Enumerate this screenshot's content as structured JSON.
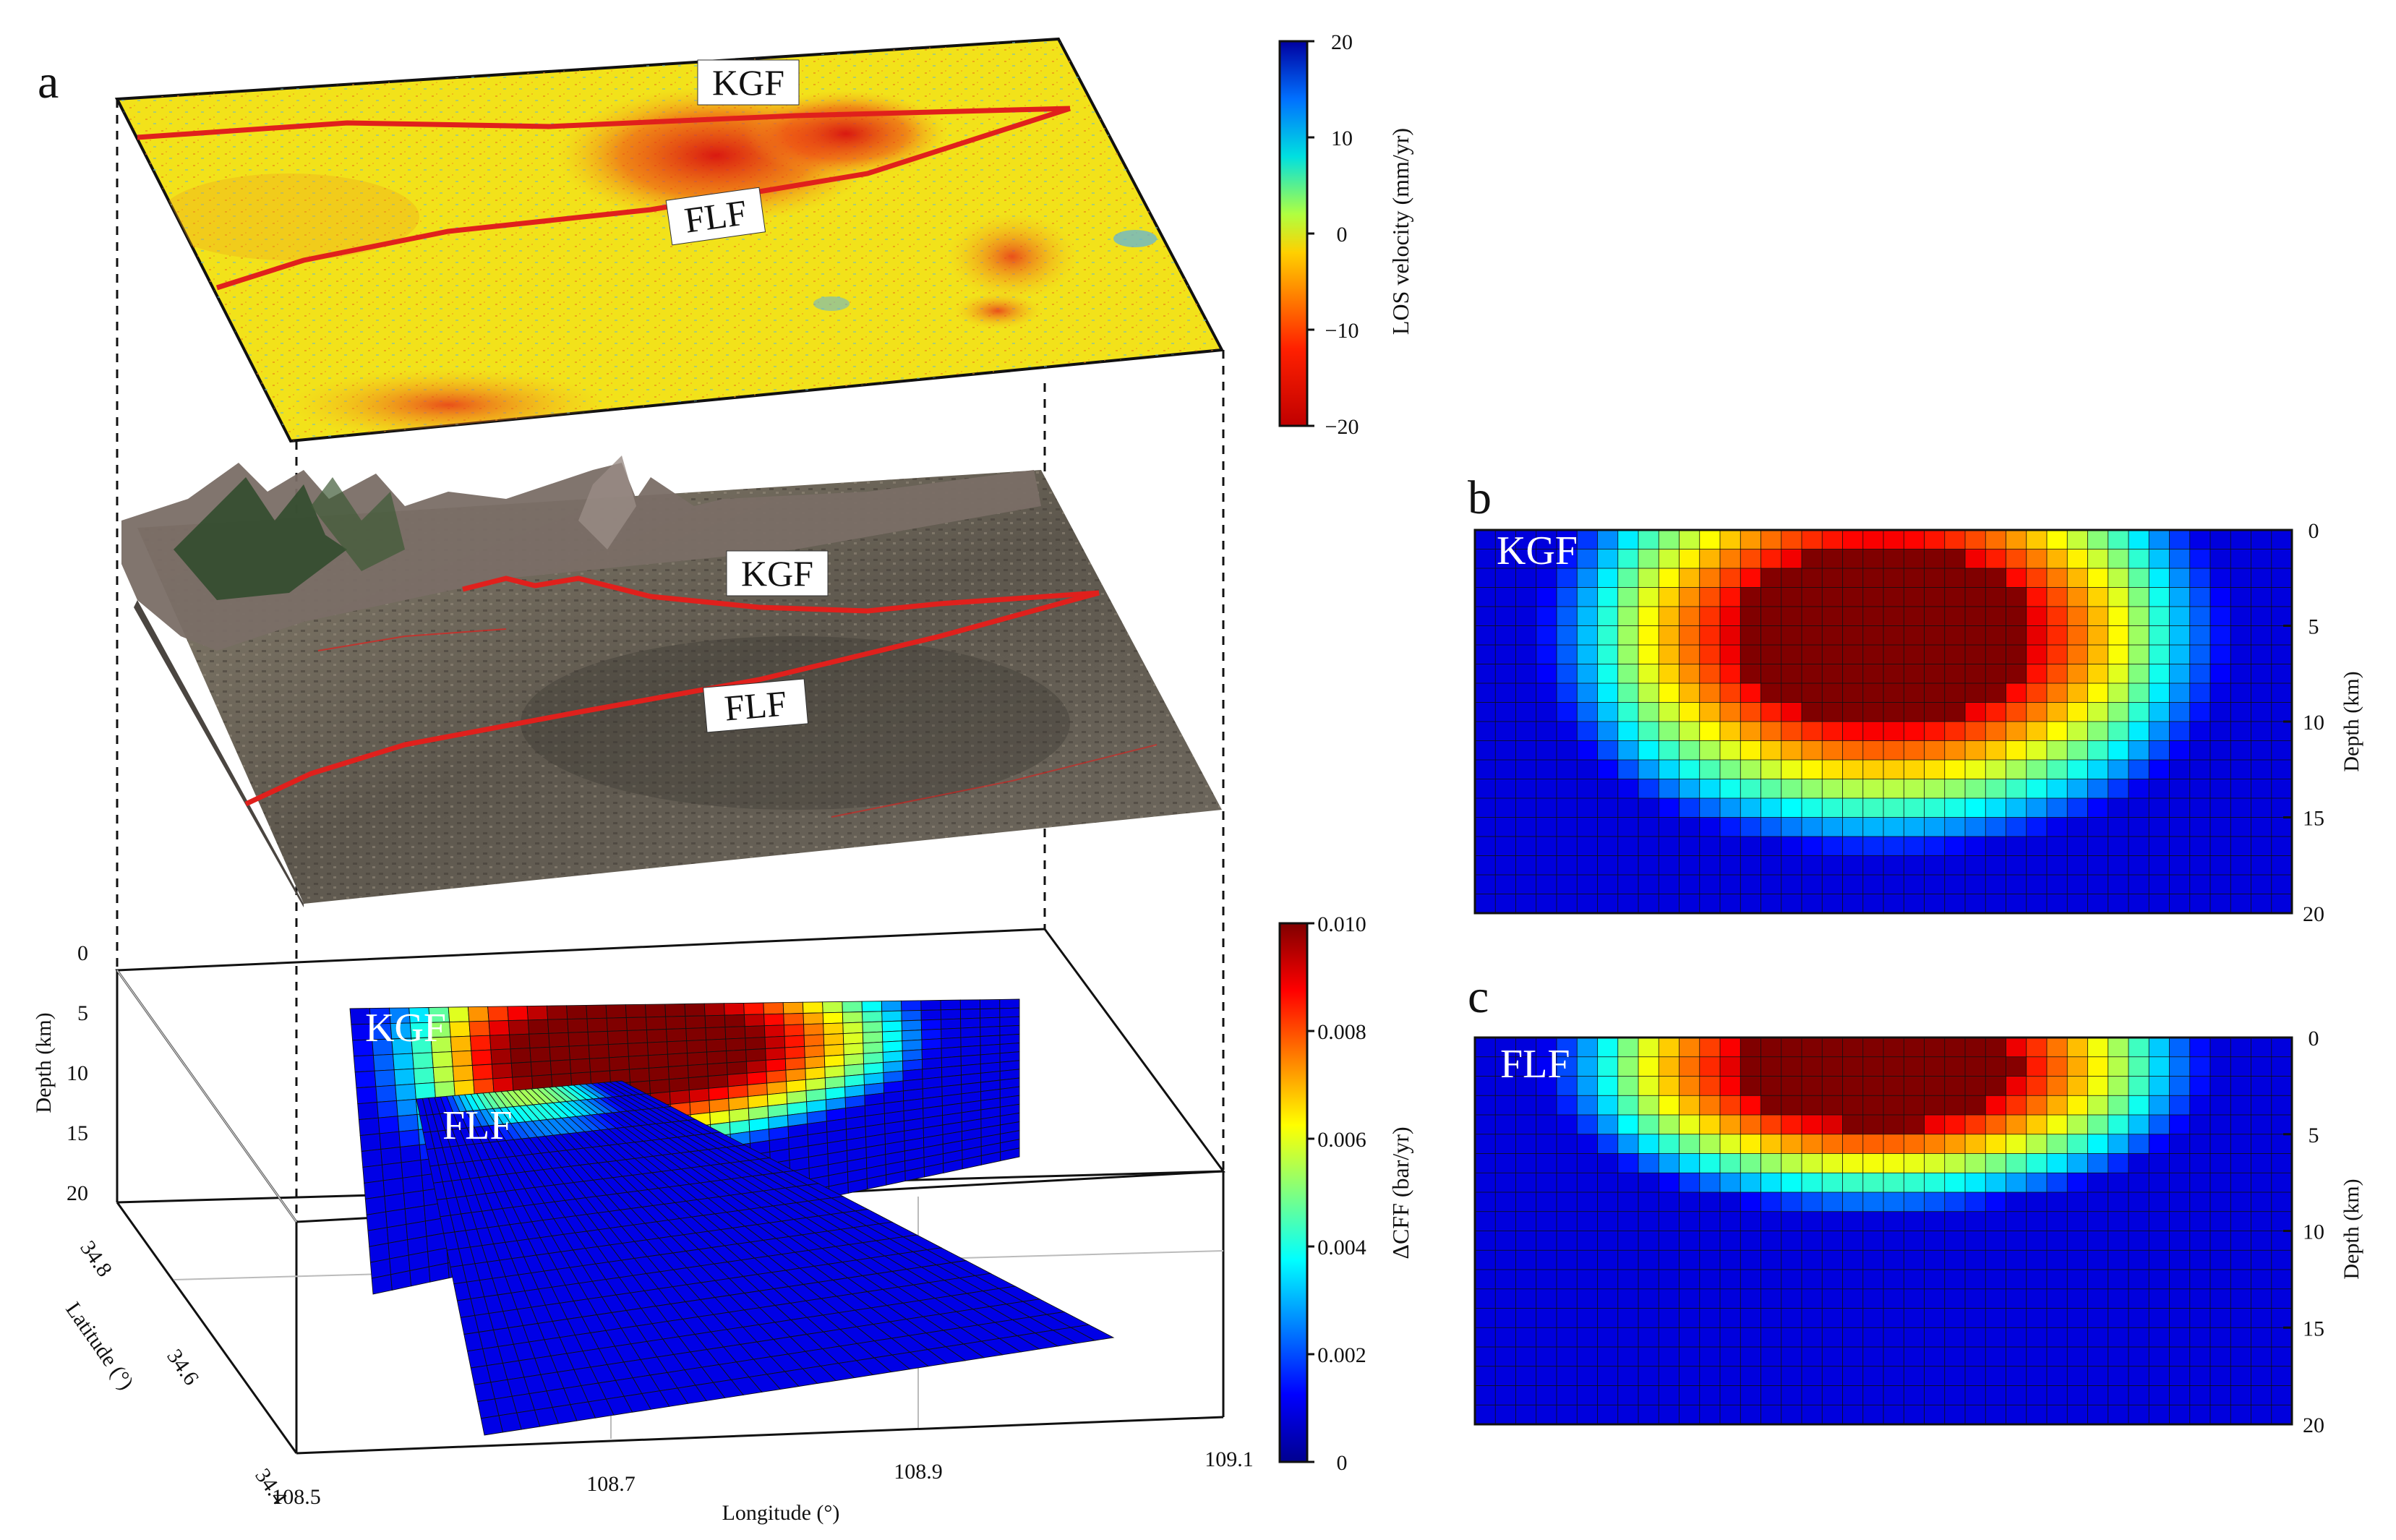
{
  "panels": {
    "a": {
      "letter": "a",
      "los_layer": {
        "fault_labels": [
          "KGF",
          "FLF"
        ],
        "colorbar": {
          "label": "LOS velocity (mm/yr)",
          "ticks": [
            "20",
            "10",
            "0",
            "−10",
            "−20"
          ],
          "range": [
            -20,
            20
          ],
          "colormap": "jet"
        }
      },
      "dem_layer": {
        "fault_labels": [
          "KGF",
          "FLF"
        ]
      },
      "cff_layer": {
        "fault_labels": [
          "KGF",
          "FLF"
        ],
        "depth_axis": {
          "label": "Depth (km)",
          "ticks": [
            "0",
            "5",
            "10",
            "15",
            "20"
          ]
        },
        "latitude_axis": {
          "label": "Latitude (°)",
          "ticks": [
            "34.8",
            "34.6",
            "34.4"
          ]
        },
        "longitude_axis": {
          "label": "Longitude (°)",
          "ticks": [
            "108.5",
            "108.7",
            "108.9",
            "109.1"
          ]
        },
        "colorbar": {
          "label": "ΔCFF (bar/yr)",
          "ticks": [
            "0.010",
            "0.008",
            "0.006",
            "0.004",
            "0.002",
            "0"
          ],
          "range": [
            0,
            0.01
          ],
          "colormap": "jet"
        }
      }
    },
    "b": {
      "letter": "b",
      "fault_label": "KGF",
      "depth_axis": {
        "label": "Depth (km)",
        "ticks": [
          "0",
          "5",
          "10",
          "15",
          "20"
        ]
      }
    },
    "c": {
      "letter": "c",
      "fault_label": "FLF",
      "depth_axis": {
        "label": "Depth (km)",
        "ticks": [
          "0",
          "5",
          "10",
          "15",
          "20"
        ]
      }
    }
  },
  "chart_data": [
    {
      "type": "heatmap",
      "title": "b",
      "fault": "KGF",
      "ylabel": "Depth (km)",
      "ylim": [
        0,
        20
      ],
      "ycategories_from_ticks": [
        0,
        5,
        10,
        15,
        20
      ],
      "grid": "on",
      "colorbar_range": [
        0,
        0.01
      ],
      "rows": 20,
      "cols": 40,
      "peak": {
        "center_col_frac": 0.5,
        "center_depth_km": 5.5,
        "half_width_frac": 0.21,
        "depth_extent_km": 9,
        "value": 0.01
      }
    },
    {
      "type": "heatmap",
      "title": "c",
      "fault": "FLF",
      "ylabel": "Depth (km)",
      "ylim": [
        0,
        20
      ],
      "ycategories_from_ticks": [
        0,
        5,
        10,
        15,
        20
      ],
      "grid": "on",
      "colorbar_range": [
        0,
        0.01
      ],
      "rows": 20,
      "cols": 40,
      "peak": {
        "center_col_frac": 0.49,
        "center_depth_km": 1.5,
        "half_width_frac": 0.2,
        "depth_extent_km": 6,
        "value": 0.01
      }
    }
  ],
  "colors": {
    "fault_line": "#e0201c",
    "los_base": "#f2e21a",
    "los_red": "#e03a16",
    "dem_base": "#6c6558",
    "frame": "#111111"
  }
}
